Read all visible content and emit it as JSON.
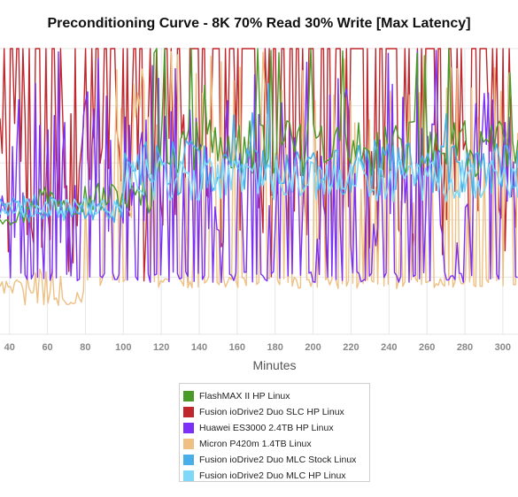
{
  "chart_data": {
    "type": "line",
    "title": "Preconditioning Curve - 8K 70% Read 30% Write [Max Latency]",
    "xlabel": "Minutes",
    "ylabel": "",
    "x_ticks": [
      40,
      60,
      80,
      100,
      120,
      140,
      160,
      180,
      200,
      220,
      240,
      260,
      280,
      300
    ],
    "xlim": [
      35,
      308
    ],
    "ylim": [
      0,
      100
    ],
    "grid": true,
    "legend_position": "bottom",
    "series": [
      {
        "name": "FlashMAX II HP Linux",
        "color": "#4a9a2a"
      },
      {
        "name": "Fusion ioDrive2 Duo SLC HP Linux",
        "color": "#c0272d"
      },
      {
        "name": "Huawei ES3000 2.4TB HP Linux",
        "color": "#7b2ff7"
      },
      {
        "name": "Micron P420m 1.4TB Linux",
        "color": "#eec083"
      },
      {
        "name": "Fusion ioDrive2 Duo MLC Stock Linux",
        "color": "#4aaee8"
      },
      {
        "name": "Fusion ioDrive2 Duo MLC HP Linux",
        "color": "#7fd8f8"
      }
    ]
  }
}
